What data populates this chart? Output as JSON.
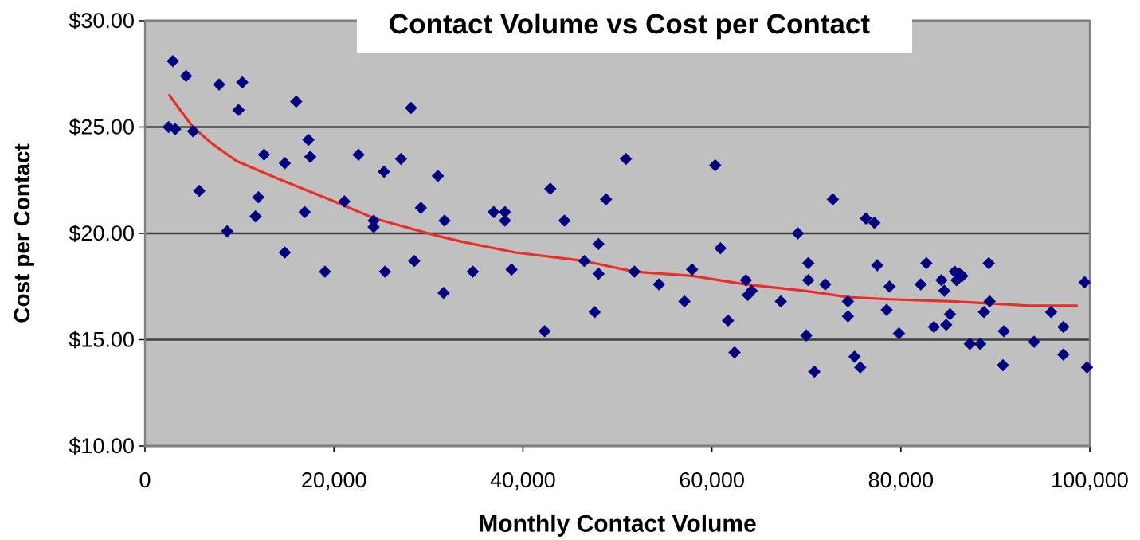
{
  "chart_data": {
    "type": "scatter",
    "title": "Contact Volume vs Cost per Contact",
    "xlabel": "Monthly Contact Volume",
    "ylabel": "Cost per Contact",
    "xlim": [
      0,
      100000
    ],
    "xticks": [
      0,
      {
        "value": 20000,
        "label": "20,000"
      },
      {
        "value": 40000,
        "label": "40,000"
      },
      {
        "value": 60000,
        "label": "60,000"
      },
      {
        "value": 80000,
        "label": "80,000"
      },
      {
        "value": 100000,
        "label": "100,000"
      }
    ],
    "ylim": [
      10,
      30
    ],
    "yticks": [
      {
        "value": 10,
        "label": "$10.00"
      },
      {
        "value": 15,
        "label": "$15.00"
      },
      {
        "value": 20,
        "label": "$20.00"
      },
      {
        "value": 25,
        "label": "$25.00"
      },
      {
        "value": 30,
        "label": "$30.00"
      }
    ],
    "grid": "y",
    "series": [
      {
        "color": "#000080",
        "marker": "diamond",
        "x": [
          2950,
          4350,
          7850,
          10300,
          9900,
          16000,
          28150,
          2500,
          3200,
          5100,
          17300,
          17500,
          12600,
          14800,
          22600,
          25300,
          27100,
          31000,
          5750,
          12000,
          11700,
          16900,
          21100,
          24200,
          24200,
          29200,
          31700,
          8700,
          14800,
          19050,
          25400,
          28500,
          31600,
          34700,
          50900,
          60350,
          42900,
          48800,
          36900,
          38100,
          38100,
          44400,
          48000,
          60900,
          38800,
          42300,
          46500,
          48000,
          47600,
          51800,
          54400,
          57100,
          57900,
          61700,
          62400,
          63600,
          64200,
          63800,
          67300,
          72800,
          76300,
          77200,
          69100,
          70200,
          70200,
          72000,
          70000,
          70850,
          74400,
          74400,
          75100,
          75700,
          77500,
          78800,
          78500,
          79800,
          82100,
          82700,
          83500,
          84300,
          84600,
          84800,
          85200,
          85700,
          86200,
          85900,
          86500,
          87300,
          88400,
          89300,
          89400,
          88800,
          90900,
          90800,
          94100,
          95900,
          97200,
          97200,
          99450,
          99700
        ],
        "values": [
          28.1,
          27.4,
          27.0,
          27.1,
          25.8,
          26.2,
          25.9,
          25.0,
          24.9,
          24.8,
          24.4,
          23.6,
          23.7,
          23.3,
          23.7,
          22.9,
          23.5,
          22.7,
          22.0,
          21.7,
          20.8,
          21.0,
          21.5,
          20.6,
          20.3,
          21.2,
          20.6,
          20.1,
          19.1,
          18.2,
          18.2,
          18.7,
          17.2,
          18.2,
          23.5,
          23.2,
          22.1,
          21.6,
          21.0,
          21.0,
          20.6,
          20.6,
          19.5,
          19.3,
          18.3,
          15.4,
          18.7,
          18.1,
          16.3,
          18.2,
          17.6,
          16.8,
          18.3,
          15.9,
          14.4,
          17.8,
          17.3,
          17.1,
          16.8,
          21.6,
          20.7,
          20.5,
          20.0,
          18.6,
          17.8,
          17.6,
          15.2,
          13.5,
          16.8,
          16.1,
          14.2,
          13.7,
          18.5,
          17.5,
          16.4,
          15.3,
          17.6,
          18.6,
          15.6,
          17.8,
          17.3,
          15.7,
          16.2,
          18.2,
          18.1,
          17.8,
          18.0,
          14.8,
          14.8,
          18.6,
          16.8,
          16.3,
          15.4,
          13.8,
          14.9,
          16.3,
          15.6,
          14.3,
          17.7,
          13.7
        ]
      },
      {
        "type": "line",
        "color": "#e8302a",
        "marker": "none",
        "x": [
          2580,
          5060,
          7160,
          9700,
          13900,
          19500,
          24300,
          30800,
          33600,
          39200,
          46500,
          51800,
          57900,
          63600,
          69800,
          74400,
          78800,
          85300,
          89500,
          93700,
          98600
        ],
        "values": [
          26.5,
          25.0,
          24.2,
          23.4,
          22.6,
          21.6,
          20.7,
          19.9,
          19.6,
          19.1,
          18.7,
          18.2,
          18.0,
          17.6,
          17.3,
          17.0,
          16.9,
          16.8,
          16.7,
          16.6,
          16.6
        ]
      }
    ]
  }
}
